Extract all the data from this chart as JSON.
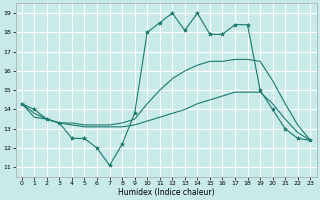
{
  "xlabel": "Humidex (Indice chaleur)",
  "background_color": "#c8eae8",
  "grid_color": "#ffffff",
  "line_color": "#1a7a6e",
  "x_ticks": [
    0,
    1,
    2,
    3,
    4,
    5,
    6,
    7,
    8,
    9,
    10,
    11,
    12,
    13,
    14,
    15,
    16,
    17,
    18,
    19,
    20,
    21,
    22,
    23
  ],
  "y_ticks": [
    11,
    12,
    13,
    14,
    15,
    16,
    17,
    18,
    19
  ],
  "xlim": [
    -0.5,
    23.5
  ],
  "ylim": [
    10.5,
    19.5
  ],
  "line1_x": [
    0,
    1,
    2,
    3,
    4,
    5,
    6,
    7,
    8,
    9,
    10,
    11,
    12,
    13,
    14,
    15,
    16,
    17,
    18,
    19,
    20,
    21,
    22,
    23
  ],
  "line1_y": [
    14.3,
    14.0,
    13.5,
    13.3,
    12.5,
    12.5,
    12.0,
    11.1,
    12.2,
    13.8,
    18.0,
    18.5,
    19.0,
    18.1,
    19.0,
    17.9,
    17.9,
    18.4,
    18.4,
    15.0,
    14.0,
    13.0,
    12.5,
    12.4
  ],
  "line2_x": [
    0,
    1,
    2,
    3,
    4,
    5,
    6,
    7,
    8,
    9,
    10,
    11,
    12,
    13,
    14,
    15,
    16,
    17,
    18,
    19,
    20,
    21,
    22,
    23
  ],
  "line2_y": [
    14.3,
    13.8,
    13.5,
    13.3,
    13.3,
    13.2,
    13.2,
    13.2,
    13.3,
    13.5,
    14.3,
    15.0,
    15.6,
    16.0,
    16.3,
    16.5,
    16.5,
    16.6,
    16.6,
    16.5,
    15.5,
    14.3,
    13.2,
    12.4
  ],
  "line3_x": [
    0,
    1,
    2,
    3,
    4,
    5,
    6,
    7,
    8,
    9,
    10,
    11,
    12,
    13,
    14,
    15,
    16,
    17,
    18,
    19,
    20,
    21,
    22,
    23
  ],
  "line3_y": [
    14.3,
    13.6,
    13.5,
    13.3,
    13.2,
    13.1,
    13.1,
    13.1,
    13.1,
    13.2,
    13.4,
    13.6,
    13.8,
    14.0,
    14.3,
    14.5,
    14.7,
    14.9,
    14.9,
    14.9,
    14.3,
    13.5,
    12.8,
    12.4
  ]
}
